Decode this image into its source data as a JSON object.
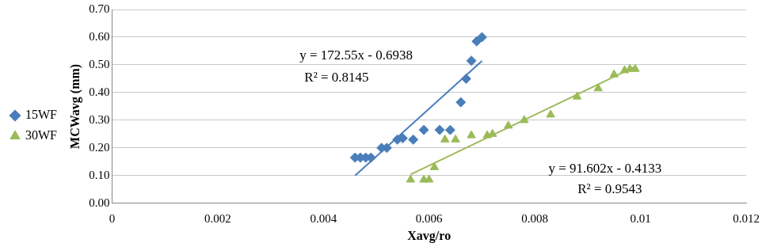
{
  "chart_data": {
    "type": "scatter",
    "x_label": "Xavg/ro",
    "y_label": "MCWavg (mm)",
    "xlim": [
      0,
      0.012
    ],
    "xticks": [
      0,
      0.002,
      0.004,
      0.006,
      0.008,
      0.01,
      0.012
    ],
    "ylim": [
      0,
      0.7
    ],
    "yticks": [
      {
        "value": 0,
        "label": "0.00"
      },
      {
        "value": 0.1,
        "label": "0.10"
      },
      {
        "value": 0.2,
        "label": "0.20"
      },
      {
        "value": 0.3,
        "label": "0.30"
      },
      {
        "value": 0.4,
        "label": "0.40"
      },
      {
        "value": 0.5,
        "label": "0.50"
      },
      {
        "value": 0.6,
        "label": "0.60"
      },
      {
        "value": 0.7,
        "label": "0.70"
      }
    ],
    "grid": "y",
    "legend": "left",
    "series": [
      {
        "name": "15WF",
        "color": "#4a7ebb",
        "marker": "diamond",
        "x": [
          0.0046,
          0.0047,
          0.0048,
          0.0049,
          0.0051,
          0.0052,
          0.0054,
          0.0055,
          0.0057,
          0.0059,
          0.0062,
          0.0064,
          0.0066,
          0.0067,
          0.0068,
          0.0069,
          0.007
        ],
        "values": [
          0.165,
          0.165,
          0.165,
          0.165,
          0.2,
          0.2,
          0.23,
          0.235,
          0.23,
          0.265,
          0.265,
          0.265,
          0.365,
          0.45,
          0.515,
          0.585,
          0.6
        ],
        "trend": {
          "x": [
            0.0046,
            0.007
          ],
          "values": [
            0.0999,
            0.5141
          ]
        }
      },
      {
        "name": "30WF",
        "color": "#9bbb59",
        "marker": "triangle",
        "x": [
          0.00565,
          0.0059,
          0.006,
          0.0061,
          0.0063,
          0.0065,
          0.0068,
          0.0071,
          0.0072,
          0.0075,
          0.0078,
          0.0083,
          0.0088,
          0.0092,
          0.0095,
          0.0097,
          0.0098,
          0.0099
        ],
        "values": [
          0.085,
          0.085,
          0.085,
          0.13,
          0.23,
          0.23,
          0.245,
          0.245,
          0.25,
          0.28,
          0.3,
          0.32,
          0.385,
          0.415,
          0.465,
          0.48,
          0.485,
          0.485
        ],
        "trend": {
          "x": [
            0.00565,
            0.0099
          ],
          "values": [
            0.1043,
            0.4936
          ]
        }
      }
    ],
    "annotations": [
      {
        "text": "y = 172.55x - 0.6938",
        "x": 0.00462,
        "y": 0.534
      },
      {
        "text": "R² = 0.8145",
        "x": 0.00425,
        "y": 0.453
      },
      {
        "text": "y = 91.602x - 0.4133",
        "x": 0.00933,
        "y": 0.125
      },
      {
        "text": "R² = 0.9543",
        "x": 0.00942,
        "y": 0.05
      }
    ]
  }
}
